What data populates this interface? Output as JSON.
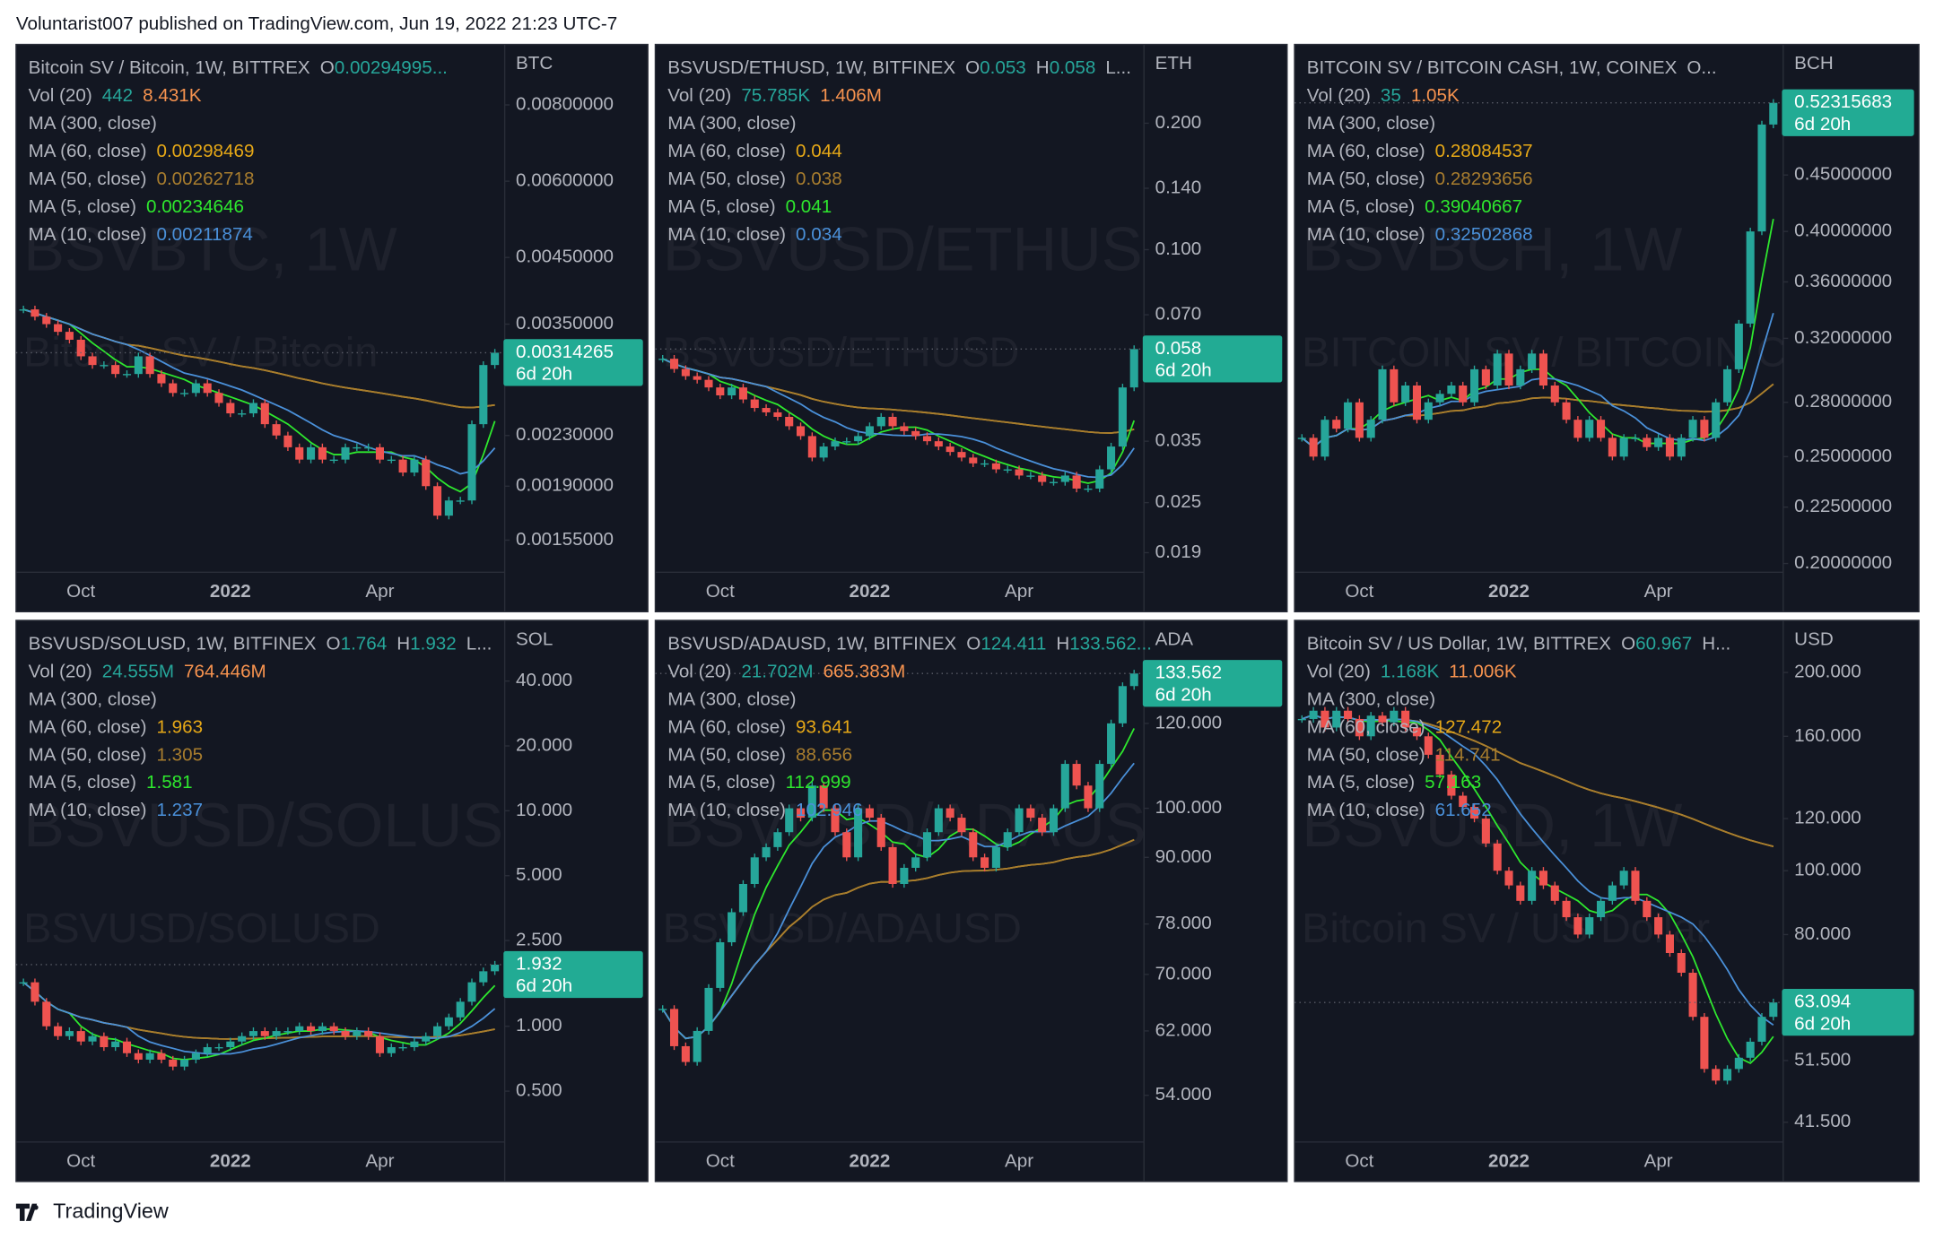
{
  "header": "Voluntarist007 published on TradingView.com, Jun 19, 2022 21:23 UTC-7",
  "footer_brand": "TradingView",
  "chart_data": [
    {
      "type": "candlestick",
      "title": "Bitcoin SV / Bitcoin, 1W, BITTREX",
      "ohlc": [
        {
          "label": "O",
          "value": "0.00294995..."
        }
      ],
      "vol": {
        "label": "Vol (20)",
        "values": [
          "442",
          "8.431K"
        ]
      },
      "ma": [
        {
          "name": "MA (300, close)"
        },
        {
          "name": "MA (60, close)",
          "value": "0.00298469",
          "color": "#e6a817"
        },
        {
          "name": "MA (50, close)",
          "value": "0.00262718",
          "color": "#a87d2e"
        },
        {
          "name": "MA (5, close)",
          "value": "0.00234646",
          "color": "#2ee82e"
        },
        {
          "name": "MA (10, close)",
          "value": "0.00211874",
          "color": "#4a90d9"
        }
      ],
      "currency": "BTC",
      "countdown": "6d 20h",
      "watermark": [
        "BSVBTC, 1W",
        "Bitcoin SV / Bitcoin"
      ],
      "categories": [
        null,
        null,
        null,
        null,
        null,
        "Oct",
        null,
        null,
        null,
        null,
        null,
        null,
        null,
        null,
        null,
        null,
        null,
        null,
        "2022",
        null,
        null,
        null,
        null,
        null,
        null,
        null,
        null,
        null,
        null,
        null,
        null,
        "Apr",
        null,
        null,
        null,
        null,
        null,
        null,
        null,
        null,
        null,
        null
      ],
      "values": [
        0.0037,
        0.0036,
        0.0035,
        0.0034,
        0.0033,
        0.0031,
        0.003,
        0.003,
        0.0029,
        0.0029,
        0.0031,
        0.0029,
        0.0028,
        0.0027,
        0.0027,
        0.0028,
        0.0027,
        0.0026,
        0.0025,
        0.0025,
        0.0026,
        0.0024,
        0.0023,
        0.0022,
        0.0021,
        0.0022,
        0.0021,
        0.0021,
        0.0022,
        0.0022,
        0.0022,
        0.0021,
        0.0021,
        0.002,
        0.0021,
        0.0019,
        0.0017,
        0.0018,
        0.0018,
        0.0024,
        0.003,
        0.00314265
      ],
      "log_scale": true,
      "ylim": [
        0.001386,
        0.01005
      ],
      "yticks": [
        {
          "value": 0.008,
          "label": "0.00800000"
        },
        {
          "value": 0.006,
          "label": "0.00600000"
        },
        {
          "value": 0.0045,
          "label": "0.00450000"
        },
        {
          "value": 0.0035,
          "label": "0.00350000"
        },
        {
          "value": 0.0023,
          "label": "0.00230000"
        },
        {
          "value": 0.0019,
          "label": "0.00190000"
        },
        {
          "value": 0.00155,
          "label": "0.00155000"
        }
      ],
      "up_color": "#26a69a",
      "down_color": "#ef5350"
    },
    {
      "type": "candlestick",
      "title": "BSVUSD/ETHUSD, 1W, BITFINEX",
      "ohlc": [
        {
          "label": "O",
          "value": "0.053"
        },
        {
          "label": "H",
          "value": "0.058"
        },
        {
          "label": "L..."
        }
      ],
      "vol": {
        "label": "Vol (20)",
        "values": [
          "75.785K",
          "1.406M"
        ]
      },
      "ma": [
        {
          "name": "MA (300, close)"
        },
        {
          "name": "MA (60, close)",
          "value": "0.044",
          "color": "#e6a817"
        },
        {
          "name": "MA (50, close)",
          "value": "0.038",
          "color": "#a87d2e"
        },
        {
          "name": "MA (5, close)",
          "value": "0.041",
          "color": "#2ee82e"
        },
        {
          "name": "MA (10, close)",
          "value": "0.034",
          "color": "#4a90d9"
        }
      ],
      "currency": "ETH",
      "countdown": "6d 20h",
      "watermark": [
        "BSVUSD/ETHUSD, 1W",
        "BSVUSD/ETHUSD"
      ],
      "categories": [
        null,
        null,
        null,
        null,
        null,
        "Oct",
        null,
        null,
        null,
        null,
        null,
        null,
        null,
        null,
        null,
        null,
        null,
        null,
        "2022",
        null,
        null,
        null,
        null,
        null,
        null,
        null,
        null,
        null,
        null,
        null,
        null,
        "Apr",
        null,
        null,
        null,
        null,
        null,
        null,
        null,
        null,
        null,
        null
      ],
      "values": [
        0.055,
        0.052,
        0.05,
        0.049,
        0.047,
        0.045,
        0.047,
        0.044,
        0.042,
        0.041,
        0.04,
        0.038,
        0.036,
        0.032,
        0.034,
        0.035,
        0.035,
        0.036,
        0.038,
        0.04,
        0.038,
        0.037,
        0.036,
        0.035,
        0.034,
        0.033,
        0.032,
        0.031,
        0.031,
        0.03,
        0.03,
        0.029,
        0.029,
        0.028,
        0.028,
        0.029,
        0.027,
        0.027,
        0.03,
        0.034,
        0.047,
        0.058
      ],
      "log_scale": true,
      "ylim": [
        0.0173,
        0.308
      ],
      "yticks": [
        {
          "value": 0.2,
          "label": "0.200"
        },
        {
          "value": 0.14,
          "label": "0.140"
        },
        {
          "value": 0.1,
          "label": "0.100"
        },
        {
          "value": 0.07,
          "label": "0.070"
        },
        {
          "value": 0.035,
          "label": "0.035"
        },
        {
          "value": 0.025,
          "label": "0.025"
        },
        {
          "value": 0.019,
          "label": "0.019"
        }
      ],
      "up_color": "#26a69a",
      "down_color": "#ef5350"
    },
    {
      "type": "candlestick",
      "title": "BITCOIN SV / BITCOIN CASH, 1W, COINEX",
      "ohlc": [
        {
          "label": "O..."
        }
      ],
      "vol": {
        "label": "Vol (20)",
        "values": [
          "35",
          "1.05K"
        ]
      },
      "ma": [
        {
          "name": "MA (300, close)"
        },
        {
          "name": "MA (60, close)",
          "value": "0.28084537",
          "color": "#e6a817"
        },
        {
          "name": "MA (50, close)",
          "value": "0.28293656",
          "color": "#a87d2e"
        },
        {
          "name": "MA (5, close)",
          "value": "0.39040667",
          "color": "#2ee82e"
        },
        {
          "name": "MA (10, close)",
          "value": "0.32502868",
          "color": "#4a90d9"
        }
      ],
      "currency": "BCH",
      "countdown": "6d 20h",
      "watermark": [
        "BSVBCH, 1W",
        "BITCOIN SV / BITCOIN CASH"
      ],
      "categories": [
        null,
        null,
        null,
        null,
        null,
        "Oct",
        null,
        null,
        null,
        null,
        null,
        null,
        null,
        null,
        null,
        null,
        null,
        null,
        "2022",
        null,
        null,
        null,
        null,
        null,
        null,
        null,
        null,
        null,
        null,
        null,
        null,
        "Apr",
        null,
        null,
        null,
        null,
        null,
        null,
        null,
        null,
        null,
        null
      ],
      "values": [
        0.26,
        0.25,
        0.27,
        0.265,
        0.28,
        0.26,
        0.27,
        0.3,
        0.28,
        0.29,
        0.27,
        0.28,
        0.285,
        0.29,
        0.28,
        0.3,
        0.29,
        0.31,
        0.29,
        0.3,
        0.31,
        0.29,
        0.28,
        0.27,
        0.26,
        0.27,
        0.26,
        0.25,
        0.26,
        0.26,
        0.255,
        0.26,
        0.25,
        0.26,
        0.27,
        0.26,
        0.28,
        0.3,
        0.33,
        0.4,
        0.5,
        0.52315683
      ],
      "log_scale": true,
      "ylim": [
        0.1974,
        0.591
      ],
      "yticks": [
        {
          "value": 0.45,
          "label": "0.45000000"
        },
        {
          "value": 0.4,
          "label": "0.40000000"
        },
        {
          "value": 0.36,
          "label": "0.36000000"
        },
        {
          "value": 0.32,
          "label": "0.32000000"
        },
        {
          "value": 0.28,
          "label": "0.28000000"
        },
        {
          "value": 0.25,
          "label": "0.25000000"
        },
        {
          "value": 0.225,
          "label": "0.22500000"
        },
        {
          "value": 0.2,
          "label": "0.20000000"
        }
      ],
      "up_color": "#26a69a",
      "down_color": "#ef5350"
    },
    {
      "type": "candlestick",
      "title": "BSVUSD/SOLUSD, 1W, BITFINEX",
      "ohlc": [
        {
          "label": "O",
          "value": "1.764"
        },
        {
          "label": "H",
          "value": "1.932"
        },
        {
          "label": "L..."
        }
      ],
      "vol": {
        "label": "Vol (20)",
        "values": [
          "24.555M",
          "764.446M"
        ]
      },
      "ma": [
        {
          "name": "MA (300, close)"
        },
        {
          "name": "MA (60, close)",
          "value": "1.963",
          "color": "#e6a817"
        },
        {
          "name": "MA (50, close)",
          "value": "1.305",
          "color": "#a87d2e"
        },
        {
          "name": "MA (5, close)",
          "value": "1.581",
          "color": "#2ee82e"
        },
        {
          "name": "MA (10, close)",
          "value": "1.237",
          "color": "#4a90d9"
        }
      ],
      "currency": "SOL",
      "countdown": "6d 20h",
      "watermark": [
        "BSVUSD/SOLUSD, 1W",
        "BSVUSD/SOLUSD"
      ],
      "categories": [
        null,
        null,
        null,
        null,
        null,
        "Oct",
        null,
        null,
        null,
        null,
        null,
        null,
        null,
        null,
        null,
        null,
        null,
        null,
        "2022",
        null,
        null,
        null,
        null,
        null,
        null,
        null,
        null,
        null,
        null,
        null,
        null,
        "Apr",
        null,
        null,
        null,
        null,
        null,
        null,
        null,
        null,
        null,
        null
      ],
      "values": [
        1.6,
        1.3,
        1.0,
        0.9,
        0.95,
        0.85,
        0.9,
        0.8,
        0.85,
        0.75,
        0.7,
        0.75,
        0.7,
        0.65,
        0.7,
        0.75,
        0.8,
        0.8,
        0.85,
        0.9,
        0.95,
        0.9,
        0.95,
        0.95,
        1.0,
        0.95,
        1.0,
        0.95,
        0.9,
        0.95,
        0.9,
        0.75,
        0.8,
        0.8,
        0.85,
        0.9,
        1.0,
        1.1,
        1.3,
        1.6,
        1.8,
        1.932
      ],
      "log_scale": true,
      "ylim": [
        0.298,
        76.5
      ],
      "yticks": [
        {
          "value": 40,
          "label": "40.000"
        },
        {
          "value": 20,
          "label": "20.000"
        },
        {
          "value": 10,
          "label": "10.000"
        },
        {
          "value": 5,
          "label": "5.000"
        },
        {
          "value": 2.5,
          "label": "2.500"
        },
        {
          "value": 1,
          "label": "1.000"
        },
        {
          "value": 0.5,
          "label": "0.500"
        }
      ],
      "up_color": "#26a69a",
      "down_color": "#ef5350"
    },
    {
      "type": "candlestick",
      "title": "BSVUSD/ADAUSD, 1W, BITFINEX",
      "ohlc": [
        {
          "label": "O",
          "value": "124.411"
        },
        {
          "label": "H",
          "value": "133.562..."
        }
      ],
      "vol": {
        "label": "Vol (20)",
        "values": [
          "21.702M",
          "665.383M"
        ]
      },
      "ma": [
        {
          "name": "MA (300, close)"
        },
        {
          "name": "MA (60, close)",
          "value": "93.641",
          "color": "#e6a817"
        },
        {
          "name": "MA (50, close)",
          "value": "88.656",
          "color": "#a87d2e"
        },
        {
          "name": "MA (5, close)",
          "value": "112.999",
          "color": "#2ee82e"
        },
        {
          "name": "MA (10, close)",
          "value": "102.946",
          "color": "#4a90d9"
        }
      ],
      "currency": "ADA",
      "countdown": "6d 20h",
      "watermark": [
        "BSVUSD/ADAUSD, 1W",
        "BSVUSD/ADAUSD"
      ],
      "categories": [
        null,
        null,
        null,
        null,
        null,
        "Oct",
        null,
        null,
        null,
        null,
        null,
        null,
        null,
        null,
        null,
        null,
        null,
        null,
        "2022",
        null,
        null,
        null,
        null,
        null,
        null,
        null,
        null,
        null,
        null,
        null,
        null,
        "Apr",
        null,
        null,
        null,
        null,
        null,
        null,
        null,
        null,
        null,
        null
      ],
      "values": [
        65,
        60,
        58,
        62,
        68,
        75,
        80,
        85,
        90,
        92,
        95,
        100,
        98,
        105,
        100,
        95,
        90,
        100,
        98,
        92,
        85,
        88,
        90,
        95,
        100,
        98,
        95,
        90,
        88,
        92,
        95,
        100,
        98,
        95,
        100,
        110,
        105,
        100,
        110,
        120,
        130,
        133.562
      ],
      "log_scale": true,
      "ylim": [
        49.1,
        149.7
      ],
      "yticks": [
        {
          "value": 120,
          "label": "120.000"
        },
        {
          "value": 100,
          "label": "100.000"
        },
        {
          "value": 90,
          "label": "90.000"
        },
        {
          "value": 78,
          "label": "78.000"
        },
        {
          "value": 70,
          "label": "70.000"
        },
        {
          "value": 62,
          "label": "62.000"
        },
        {
          "value": 54,
          "label": "54.000"
        }
      ],
      "up_color": "#26a69a",
      "down_color": "#ef5350"
    },
    {
      "type": "candlestick",
      "title": "Bitcoin SV / US Dollar, 1W, BITTREX",
      "ohlc": [
        {
          "label": "O",
          "value": "60.967"
        },
        {
          "label": "H..."
        }
      ],
      "vol": {
        "label": "Vol (20)",
        "values": [
          "1.168K",
          "11.006K"
        ]
      },
      "ma": [
        {
          "name": "MA (300, close)"
        },
        {
          "name": "MA (60, close)",
          "value": "127.472",
          "color": "#e6a817"
        },
        {
          "name": "MA (50, close)",
          "value": "114.741",
          "color": "#a87d2e"
        },
        {
          "name": "MA (5, close)",
          "value": "57.163",
          "color": "#2ee82e"
        },
        {
          "name": "MA (10, close)",
          "value": "61.652",
          "color": "#4a90d9"
        }
      ],
      "currency": "USD",
      "countdown": "6d 20h",
      "watermark": [
        "BSVUSD, 1W",
        "Bitcoin SV / US Dollar"
      ],
      "categories": [
        null,
        null,
        null,
        null,
        null,
        "Oct",
        null,
        null,
        null,
        null,
        null,
        null,
        null,
        null,
        null,
        null,
        null,
        null,
        "2022",
        null,
        null,
        null,
        null,
        null,
        null,
        null,
        null,
        null,
        null,
        null,
        null,
        "Apr",
        null,
        null,
        null,
        null,
        null,
        null,
        null,
        null,
        null,
        null
      ],
      "values": [
        170,
        175,
        165,
        175,
        170,
        160,
        172,
        168,
        175,
        165,
        160,
        150,
        140,
        130,
        125,
        120,
        110,
        100,
        95,
        90,
        100,
        95,
        90,
        85,
        80,
        85,
        90,
        95,
        100,
        90,
        85,
        80,
        75,
        70,
        60,
        50,
        48,
        50,
        52,
        55,
        60,
        63.094
      ],
      "log_scale": true,
      "ylim": [
        39.06,
        240
      ],
      "yticks": [
        {
          "value": 200,
          "label": "200.000"
        },
        {
          "value": 160,
          "label": "160.000"
        },
        {
          "value": 120,
          "label": "120.000"
        },
        {
          "value": 100,
          "label": "100.000"
        },
        {
          "value": 80,
          "label": "80.000"
        },
        {
          "value": 51.5,
          "label": "51.500"
        },
        {
          "value": 41.5,
          "label": "41.500"
        }
      ],
      "up_color": "#26a69a",
      "down_color": "#ef5350"
    }
  ]
}
